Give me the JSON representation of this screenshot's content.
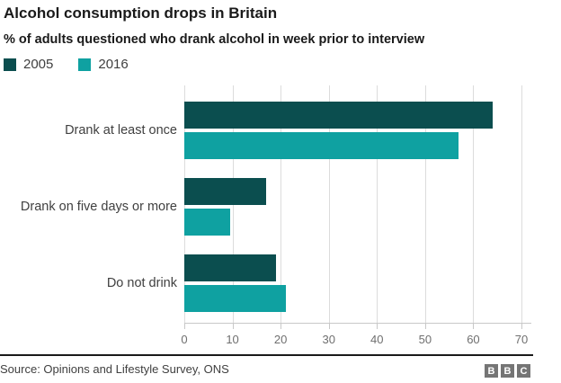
{
  "header": {
    "title": "Alcohol consumption drops in Britain",
    "subtitle": "% of adults questioned who drank alcohol in week prior to interview"
  },
  "chart_data": {
    "type": "bar",
    "orientation": "horizontal",
    "title": "Alcohol consumption drops in Britain",
    "subtitle": "% of adults questioned who drank alcohol in week prior to interview",
    "categories": [
      "Drank at least once",
      "Drank on five days or more",
      "Do not drink"
    ],
    "series": [
      {
        "name": "2005",
        "color": "#0b4e4f",
        "values": [
          64,
          17,
          19
        ]
      },
      {
        "name": "2016",
        "color": "#0fa1a1",
        "values": [
          57,
          9.5,
          21
        ]
      }
    ],
    "xlim": [
      0,
      70
    ],
    "xticks": [
      0,
      10,
      20,
      30,
      40,
      50,
      60,
      70
    ],
    "xlabel": "",
    "ylabel": "",
    "grid": true,
    "legend_position": "top-left"
  },
  "footer": {
    "source": "Source: Opinions and Lifestyle Survey, ONS",
    "logo_letters": [
      "B",
      "B",
      "C"
    ]
  },
  "colors": {
    "series_2005": "#0b4e4f",
    "series_2016": "#0fa1a1",
    "gridline": "#dcdcdc",
    "axis_line": "#c8c8c8",
    "tick_label": "#6f6f6f",
    "category_label": "#404040",
    "text": "#1a1a1a",
    "logo_background": "#757575"
  }
}
